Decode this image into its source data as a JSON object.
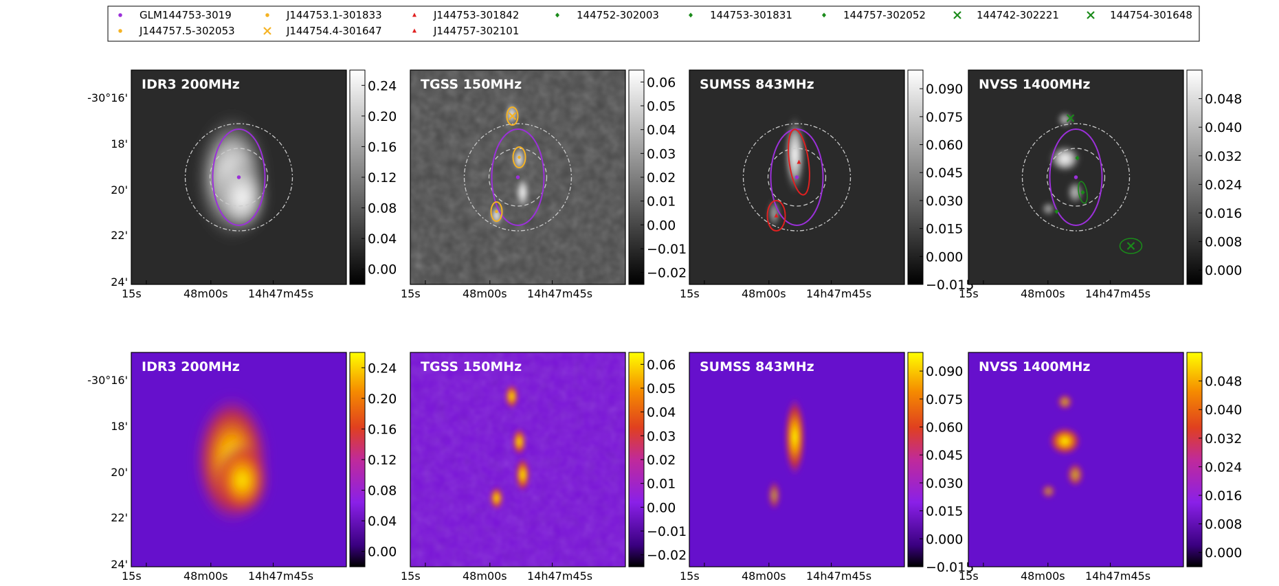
{
  "legend": {
    "entries": [
      {
        "label": "GLM144753-3019",
        "marker": "dot",
        "color": "#9b30d9"
      },
      {
        "label": "J144753.1-301833",
        "marker": "dot",
        "color": "#f5b324"
      },
      {
        "label": "J144753-301842",
        "marker": "triangle",
        "color": "#e02020"
      },
      {
        "label": "144752-302003",
        "marker": "diamond",
        "color": "#1a8a1a"
      },
      {
        "label": "144753-301831",
        "marker": "diamond",
        "color": "#1a8a1a"
      },
      {
        "label": "144757-302052",
        "marker": "diamond",
        "color": "#1a8a1a"
      },
      {
        "label": "144742-302221",
        "marker": "x",
        "color": "#1a8a1a"
      },
      {
        "label": "144754-301648",
        "marker": "x",
        "color": "#1a8a1a"
      },
      {
        "label": "J144757.5-302053",
        "marker": "dot",
        "color": "#f5b324"
      },
      {
        "label": "J144754.4-301647",
        "marker": "x",
        "color": "#f5b324"
      },
      {
        "label": "J144757-302101",
        "marker": "triangle",
        "color": "#e02020"
      }
    ]
  },
  "chart_data": [
    {
      "type": "heatmap",
      "title": "IDR3 200MHz",
      "colormap": "gray",
      "row": 1,
      "xticks": [
        "15s",
        "48m00s",
        "14h47m45s"
      ],
      "yticks": [
        "-30°16'",
        "18'",
        "20'",
        "22'",
        "24'"
      ],
      "colorbar": {
        "ticks": [
          "0.24",
          "0.20",
          "0.16",
          "0.12",
          "0.08",
          "0.04",
          "0.00"
        ],
        "range": [
          -0.02,
          0.26
        ]
      }
    },
    {
      "type": "heatmap",
      "title": "TGSS 150MHz",
      "colormap": "gray",
      "row": 1,
      "xticks": [
        "15s",
        "48m00s",
        "14h47m45s"
      ],
      "colorbar": {
        "ticks": [
          "0.06",
          "0.05",
          "0.04",
          "0.03",
          "0.02",
          "0.01",
          "0.00",
          "−0.01",
          "−0.02"
        ],
        "range": [
          -0.025,
          0.065
        ]
      }
    },
    {
      "type": "heatmap",
      "title": "SUMSS 843MHz",
      "colormap": "gray",
      "row": 1,
      "xticks": [
        "15s",
        "48m00s",
        "14h47m45s"
      ],
      "colorbar": {
        "ticks": [
          "0.090",
          "0.075",
          "0.060",
          "0.045",
          "0.030",
          "0.015",
          "0.000",
          "−0.015"
        ],
        "range": [
          -0.015,
          0.1
        ]
      }
    },
    {
      "type": "heatmap",
      "title": "NVSS 1400MHz",
      "colormap": "gray",
      "row": 1,
      "xticks": [
        "15s",
        "48m00s",
        "14h47m45s"
      ],
      "colorbar": {
        "ticks": [
          "0.048",
          "0.040",
          "0.032",
          "0.024",
          "0.016",
          "0.008",
          "0.000"
        ],
        "range": [
          -0.004,
          0.056
        ]
      }
    },
    {
      "type": "heatmap",
      "title": "IDR3 200MHz",
      "colormap": "gnuplot",
      "row": 2,
      "xticks": [
        "15s",
        "48m00s",
        "14h47m45s"
      ],
      "yticks": [
        "-30°16'",
        "18'",
        "20'",
        "22'",
        "24'"
      ],
      "colorbar": {
        "ticks": [
          "0.24",
          "0.20",
          "0.16",
          "0.12",
          "0.08",
          "0.04",
          "0.00"
        ],
        "range": [
          -0.02,
          0.26
        ]
      }
    },
    {
      "type": "heatmap",
      "title": "TGSS 150MHz",
      "colormap": "gnuplot",
      "row": 2,
      "xticks": [
        "15s",
        "48m00s",
        "14h47m45s"
      ],
      "colorbar": {
        "ticks": [
          "0.06",
          "0.05",
          "0.04",
          "0.03",
          "0.02",
          "0.01",
          "0.00",
          "−0.01",
          "−0.02"
        ],
        "range": [
          -0.025,
          0.065
        ]
      }
    },
    {
      "type": "heatmap",
      "title": "SUMSS 843MHz",
      "colormap": "gnuplot",
      "row": 2,
      "xticks": [
        "15s",
        "48m00s",
        "14h47m45s"
      ],
      "colorbar": {
        "ticks": [
          "0.090",
          "0.075",
          "0.060",
          "0.045",
          "0.030",
          "0.015",
          "0.000",
          "−0.015"
        ],
        "range": [
          -0.015,
          0.1
        ]
      }
    },
    {
      "type": "heatmap",
      "title": "NVSS 1400MHz",
      "colormap": "gnuplot",
      "row": 2,
      "xticks": [
        "15s",
        "48m00s",
        "14h47m45s"
      ],
      "colorbar": {
        "ticks": [
          "0.048",
          "0.040",
          "0.032",
          "0.024",
          "0.016",
          "0.008",
          "0.000"
        ],
        "range": [
          -0.004,
          0.056
        ]
      }
    }
  ]
}
